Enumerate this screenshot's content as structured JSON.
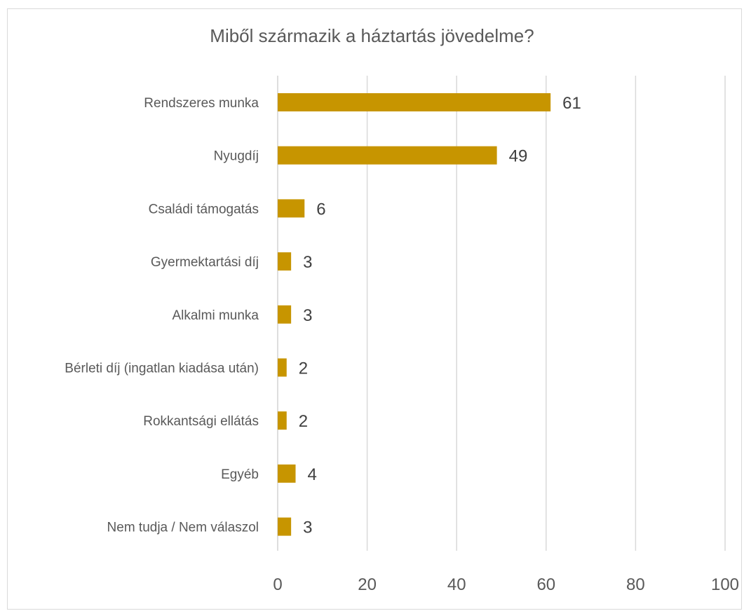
{
  "chart_data": {
    "type": "bar",
    "orientation": "horizontal",
    "title": "Miből származik a háztartás jövedelme?",
    "categories": [
      "Rendszeres munka",
      "Nyugdíj",
      "Családi támogatás",
      "Gyermektartási díj",
      "Alkalmi munka",
      "Bérleti díj (ingatlan kiadása után)",
      "Rokkantsági ellátás",
      "Egyéb",
      "Nem tudja / Nem válaszol"
    ],
    "values": [
      61,
      49,
      6,
      3,
      3,
      2,
      2,
      4,
      3
    ],
    "value_labels": [
      "61",
      "49",
      "6",
      "3",
      "3",
      "2",
      "2",
      "4",
      "3"
    ],
    "xlim": [
      0,
      100
    ],
    "x_ticks": [
      "0",
      "20",
      "40",
      "60",
      "80",
      "100"
    ],
    "grid": true,
    "bar_color": "#C79500",
    "grid_color": "#d9d9d9"
  }
}
